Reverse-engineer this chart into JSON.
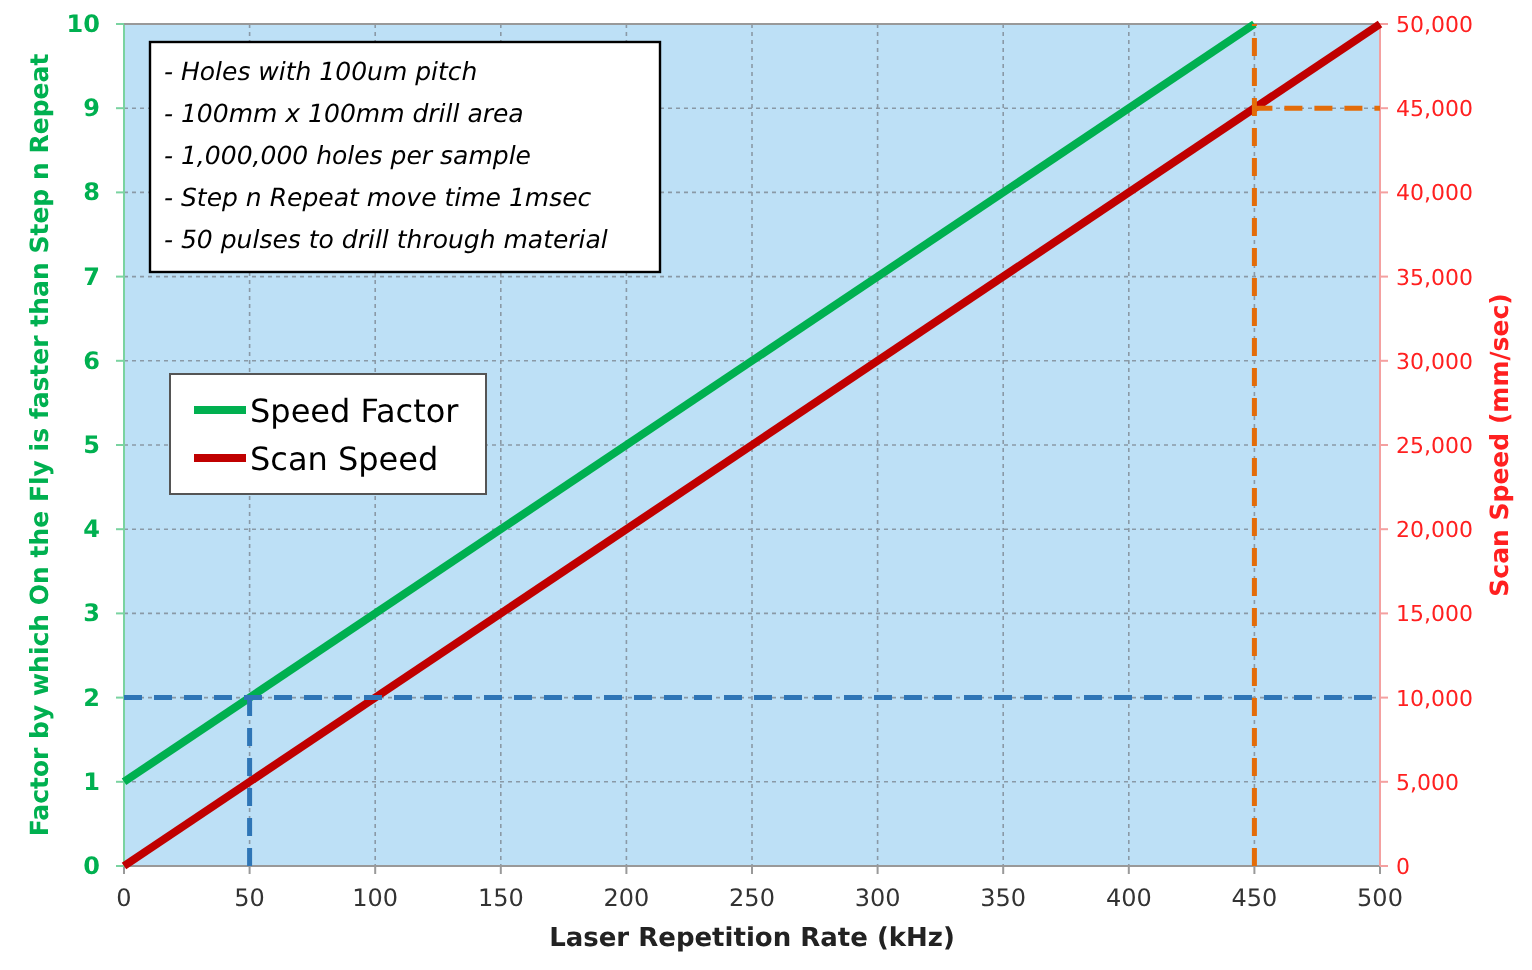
{
  "chart_data": {
    "type": "line",
    "xlabel": "Laser Repetition Rate (kHz)",
    "ylabel": "Factor by which On the Fly is faster than Step n Repeat",
    "y2label": "Scan Speed (mm/sec)",
    "xlim": [
      0,
      500
    ],
    "xticks": [
      0,
      50,
      100,
      150,
      200,
      250,
      300,
      350,
      400,
      450,
      500
    ],
    "ylim": [
      0,
      10
    ],
    "yticks": [
      0,
      1,
      2,
      3,
      4,
      5,
      6,
      7,
      8,
      9,
      10
    ],
    "y2lim": [
      0,
      50000
    ],
    "y2ticks": [
      {
        "value": 0,
        "label": "0"
      },
      {
        "value": 5000,
        "label": "5,000"
      },
      {
        "value": 10000,
        "label": "10,000"
      },
      {
        "value": 15000,
        "label": "15,000"
      },
      {
        "value": 20000,
        "label": "20,000"
      },
      {
        "value": 25000,
        "label": "25,000"
      },
      {
        "value": 30000,
        "label": "30,000"
      },
      {
        "value": 35000,
        "label": "35,000"
      },
      {
        "value": 40000,
        "label": "40,000"
      },
      {
        "value": 45000,
        "label": "45,000"
      },
      {
        "value": 50000,
        "label": "50,000"
      }
    ],
    "grid": true,
    "legend": "left",
    "line_style": "solid",
    "marker": "none",
    "annotations": [
      "- Holes with 100um pitch",
      "- 100mm x 100mm drill area",
      "- 1,000,000 holes per sample",
      "- Step n Repeat move time 1msec",
      "- 50 pulses to drill through material"
    ],
    "series": [
      {
        "name": "Speed Factor",
        "color": "#00b050",
        "x": [
          0,
          450
        ],
        "values": [
          1,
          10
        ]
      },
      {
        "name": "Scan Speed",
        "color": "#c00000",
        "axis": "y2",
        "x": [
          0,
          500
        ],
        "values": [
          0,
          50000
        ]
      },
      {
        "color": "#2e75b6",
        "line_style": "dashed",
        "x": [
          0,
          500
        ],
        "values": [
          2,
          2
        ]
      },
      {
        "color": "#2e75b6",
        "line_style": "dashed",
        "x": [
          50,
          50
        ],
        "values": [
          0,
          2
        ]
      },
      {
        "color": "#e36c09",
        "line_style": "dashed",
        "x": [
          450,
          450
        ],
        "values": [
          0,
          10
        ]
      },
      {
        "color": "#e36c09",
        "line_style": "dashed",
        "axis": "y2",
        "x": [
          450,
          500
        ],
        "values": [
          45000,
          45000
        ]
      }
    ]
  }
}
